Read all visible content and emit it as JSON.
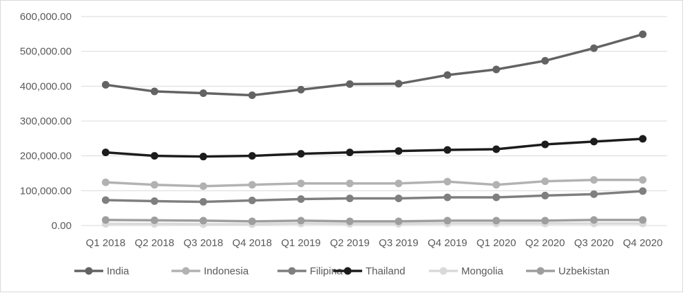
{
  "chart_data": {
    "type": "line",
    "categories": [
      "Q1 2018",
      "Q2 2018",
      "Q3 2018",
      "Q4 2018",
      "Q1 2019",
      "Q2 2019",
      "Q3 2019",
      "Q4 2019",
      "Q1 2020",
      "Q2 2020",
      "Q3 2020",
      "Q4 2020"
    ],
    "ylim": [
      0,
      600000
    ],
    "yticks": [
      0,
      100000,
      200000,
      300000,
      400000,
      500000,
      600000
    ],
    "ytick_labels": [
      "0.00",
      "100,000.00",
      "200,000.00",
      "300,000.00",
      "400,000.00",
      "500,000.00",
      "600,000.00"
    ],
    "grid": true,
    "legend_position": "bottom",
    "series": [
      {
        "name": "India",
        "color": "#636363",
        "values": [
          404000,
          385000,
          380000,
          374000,
          390000,
          406000,
          407000,
          432000,
          448000,
          473000,
          509000,
          549000
        ]
      },
      {
        "name": "Indonesia",
        "color": "#b2b2b2",
        "values": [
          124000,
          117000,
          113000,
          117000,
          121000,
          121000,
          121000,
          126000,
          117000,
          127000,
          131000,
          131000
        ]
      },
      {
        "name": "Filipina",
        "color": "#7f7f7f",
        "values": [
          73000,
          70000,
          68000,
          72000,
          76000,
          78000,
          78000,
          81000,
          81000,
          86000,
          90000,
          99000
        ]
      },
      {
        "name": "Thailand",
        "color": "#1c1c1c",
        "values": [
          210000,
          200000,
          198000,
          200000,
          206000,
          210000,
          214000,
          217000,
          219000,
          233000,
          241000,
          249000
        ]
      },
      {
        "name": "Mongolia",
        "color": "#d9d9d9",
        "values": [
          5000,
          5000,
          4000,
          4000,
          6000,
          5000,
          5000,
          6000,
          6000,
          6000,
          6000,
          6000
        ]
      },
      {
        "name": "Uzbekistan",
        "color": "#9e9e9e",
        "values": [
          16000,
          15000,
          14000,
          12000,
          14000,
          12000,
          12000,
          14000,
          14000,
          14000,
          16000,
          16000
        ]
      }
    ]
  }
}
